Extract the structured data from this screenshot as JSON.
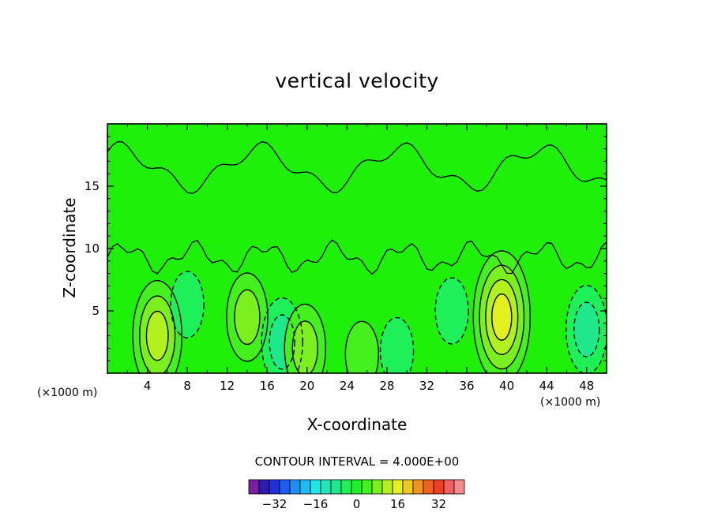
{
  "chart_data": {
    "type": "heatmap",
    "title": "vertical velocity",
    "xlabel": "X-coordinate",
    "ylabel": "Z-coordinate",
    "x_scale_label": "(×1000 m)",
    "y_scale_label": "(×1000 m)",
    "xlim": [
      0,
      50
    ],
    "ylim": [
      0,
      20
    ],
    "x_ticks": [
      "4",
      "8",
      "12",
      "16",
      "20",
      "24",
      "28",
      "32",
      "36",
      "40",
      "44",
      "48"
    ],
    "y_ticks": [
      "5",
      "10",
      "15"
    ],
    "contour_interval_label": "CONTOUR INTERVAL = 4.000E+00",
    "colorbar": {
      "levels": [
        -40,
        -36,
        -32,
        -28,
        -24,
        -20,
        -16,
        -12,
        -8,
        -4,
        0,
        4,
        8,
        12,
        16,
        20,
        24,
        28,
        32,
        36,
        40
      ],
      "tick_labels": [
        "-32",
        "-16",
        "0",
        "16",
        "32"
      ],
      "colors": [
        "#7a1fa2",
        "#2c1bb0",
        "#1f30d8",
        "#1e5cf0",
        "#1e8ef0",
        "#1ebcf0",
        "#1ee6e6",
        "#1ee6b8",
        "#1ee88a",
        "#1ef05a",
        "#1ef02a",
        "#44f01e",
        "#7cf01e",
        "#b2f01e",
        "#e4f01e",
        "#f0c81e",
        "#f0941e",
        "#f0601e",
        "#f03c28",
        "#f06060",
        "#f08c8c"
      ]
    },
    "background_value": 0,
    "features": [
      {
        "x": 5,
        "z": 3,
        "value": 10,
        "kind": "updraft"
      },
      {
        "x": 14,
        "z": 4.5,
        "value": 8,
        "kind": "updraft"
      },
      {
        "x": 17.5,
        "z": 2.5,
        "value": -8,
        "kind": "downdraft"
      },
      {
        "x": 19.8,
        "z": 2,
        "value": 6,
        "kind": "updraft"
      },
      {
        "x": 39.5,
        "z": 4.5,
        "value": 14,
        "kind": "updraft"
      },
      {
        "x": 34.5,
        "z": 5,
        "value": -5,
        "kind": "downdraft"
      },
      {
        "x": 48,
        "z": 3.5,
        "value": -6,
        "kind": "downdraft"
      },
      {
        "x": 8,
        "z": 5.5,
        "value": -4,
        "kind": "downdraft"
      },
      {
        "x": 25.5,
        "z": 1.5,
        "value": 4,
        "kind": "updraft"
      },
      {
        "x": 29,
        "z": 1.8,
        "value": -2,
        "kind": "downdraft"
      }
    ]
  }
}
